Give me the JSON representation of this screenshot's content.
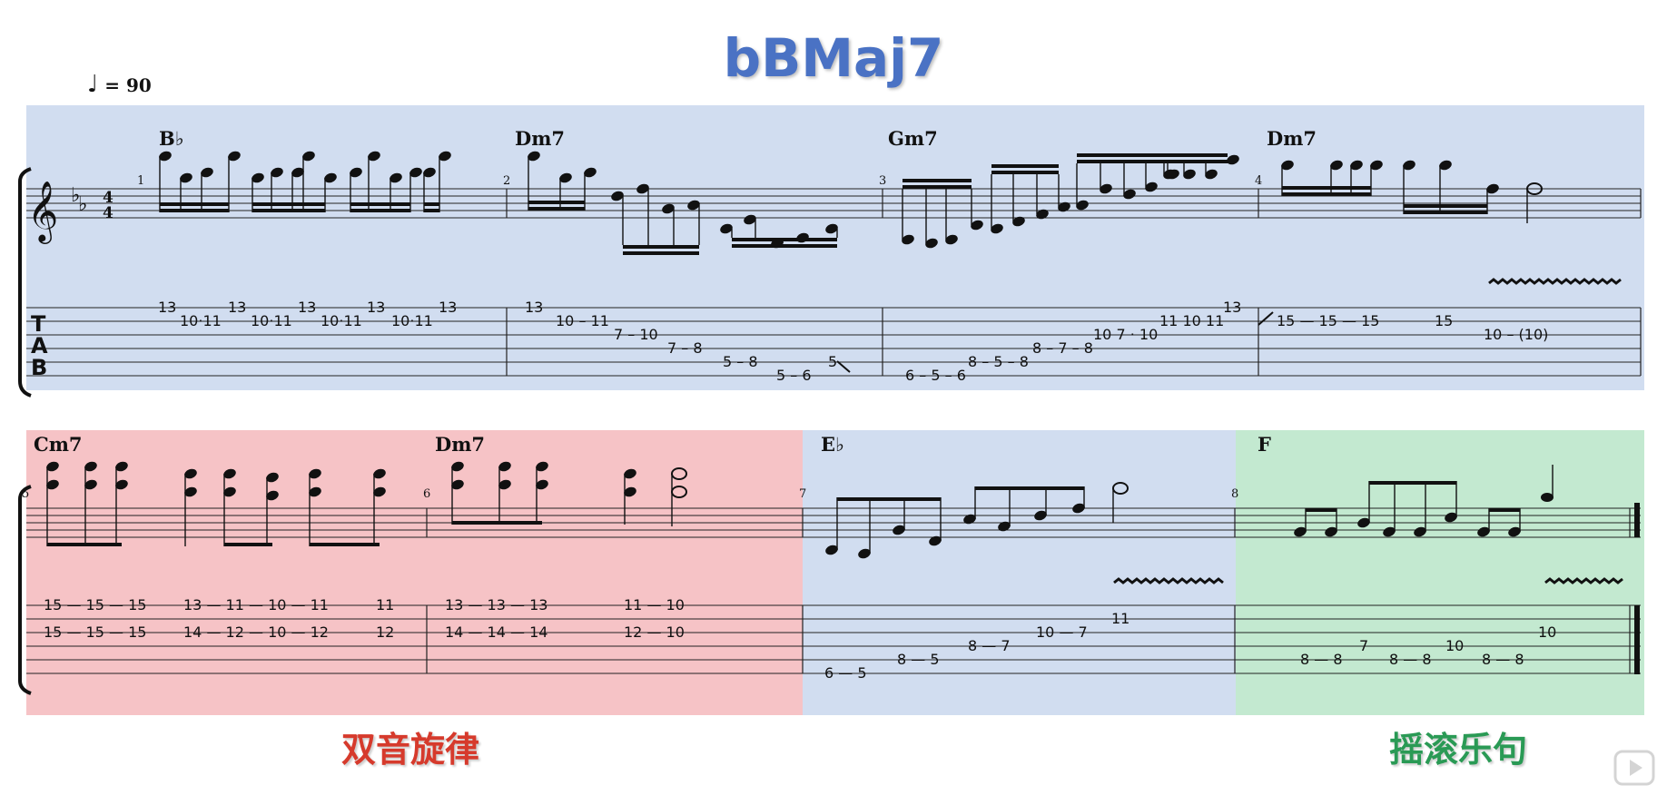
{
  "title": "bBMaj7",
  "tempo": {
    "note": "♩",
    "text": "= 90"
  },
  "time_signature": {
    "top": "4",
    "bottom": "4"
  },
  "tab_clef": [
    "T",
    "A",
    "B"
  ],
  "colors": {
    "blue": "#d1ddf0",
    "red": "#f6c3c6",
    "green": "#c3e9d0",
    "title": "#4a72c4",
    "caption_left": "#d63a2c",
    "caption_right": "#2a9a55"
  },
  "chords": [
    {
      "id": "c1",
      "label": "B♭"
    },
    {
      "id": "c2",
      "label": "Dm7"
    },
    {
      "id": "c3",
      "label": "Gm7"
    },
    {
      "id": "c4",
      "label": "Dm7"
    },
    {
      "id": "c5",
      "label": "Cm7"
    },
    {
      "id": "c6",
      "label": "Dm7"
    },
    {
      "id": "c7",
      "label": "E♭"
    },
    {
      "id": "c8",
      "label": "F"
    }
  ],
  "measure_numbers": [
    "1",
    "2",
    "3",
    "4",
    "5",
    "6",
    "7",
    "8"
  ],
  "tab_row1": [
    {
      "text": "13"
    },
    {
      "text": "10·11"
    },
    {
      "text": "13"
    },
    {
      "text": "10·11"
    },
    {
      "text": "13"
    },
    {
      "text": "10·11"
    },
    {
      "text": "13"
    },
    {
      "text": "10·11"
    },
    {
      "text": "13"
    },
    {
      "text": "13"
    },
    {
      "text": "10 – 11"
    },
    {
      "text": "7 – 10"
    },
    {
      "text": "7 – 8"
    },
    {
      "text": "5 – 8"
    },
    {
      "text": "5 – 6"
    },
    {
      "text": "5"
    },
    {
      "text": "6 – 5 – 6"
    },
    {
      "text": "8 – 5 – 8"
    },
    {
      "text": "8 – 7 – 8"
    },
    {
      "text": "10 7 · 10"
    },
    {
      "text": "11 10 11"
    },
    {
      "text": "13"
    },
    {
      "text": "15 — 15 — 15"
    },
    {
      "text": "15"
    },
    {
      "text": "10 – (10)"
    }
  ],
  "tab_row2": [
    {
      "text": "15 — 15 — 15"
    },
    {
      "text": "13 — 11 — 10 — 11"
    },
    {
      "text": "11"
    },
    {
      "text": "15 — 15 — 15"
    },
    {
      "text": "14 — 12 — 10 — 12"
    },
    {
      "text": "12"
    },
    {
      "text": "13 — 13 — 13"
    },
    {
      "text": "11 — 10"
    },
    {
      "text": "14 — 14 — 14"
    },
    {
      "text": "12 — 10"
    },
    {
      "text": "11"
    },
    {
      "text": "10 — 7"
    },
    {
      "text": "8 — 7"
    },
    {
      "text": "8 — 5"
    },
    {
      "text": "6 — 5"
    },
    {
      "text": "7"
    },
    {
      "text": "10"
    },
    {
      "text": "10"
    },
    {
      "text": "8 — 8"
    },
    {
      "text": "8 — 8"
    },
    {
      "text": "8 — 8"
    }
  ],
  "captions": {
    "left": "双音旋律",
    "right": "摇滚乐句"
  }
}
